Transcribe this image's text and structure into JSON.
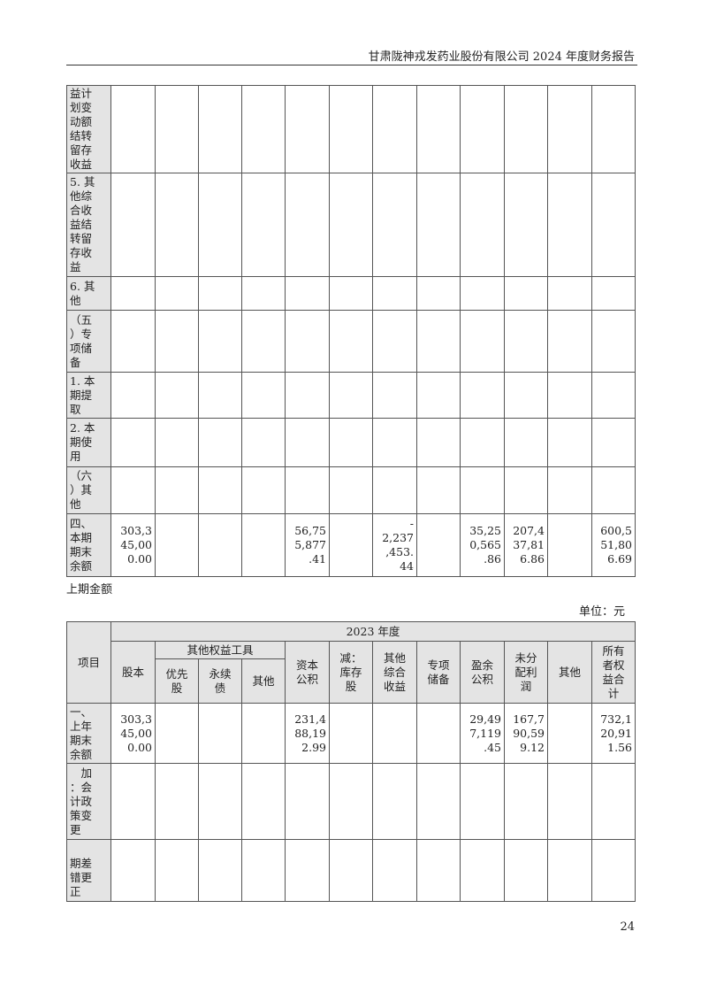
{
  "header": {
    "title": "甘肃陇神戎发药业股份有限公司 2024 年度财务报告"
  },
  "table1": {
    "rows": [
      {
        "label": "益计\n划变\n动额\n结转\n留存\n收益",
        "values": [
          "",
          "",
          "",
          "",
          "",
          "",
          "",
          "",
          "",
          "",
          "",
          ""
        ]
      },
      {
        "label": "5. 其\n他综\n合收\n益结\n转留\n存收\n益",
        "values": [
          "",
          "",
          "",
          "",
          "",
          "",
          "",
          "",
          "",
          "",
          "",
          ""
        ]
      },
      {
        "label": "6. 其\n他",
        "values": [
          "",
          "",
          "",
          "",
          "",
          "",
          "",
          "",
          "",
          "",
          "",
          ""
        ]
      },
      {
        "label": "（五\n）专\n项储\n备",
        "values": [
          "",
          "",
          "",
          "",
          "",
          "",
          "",
          "",
          "",
          "",
          "",
          ""
        ]
      },
      {
        "label": "1. 本\n期提\n取",
        "values": [
          "",
          "",
          "",
          "",
          "",
          "",
          "",
          "",
          "",
          "",
          "",
          ""
        ]
      },
      {
        "label": "2. 本\n期使\n用",
        "values": [
          "",
          "",
          "",
          "",
          "",
          "",
          "",
          "",
          "",
          "",
          "",
          ""
        ]
      },
      {
        "label": "（六\n）其\n他",
        "values": [
          "",
          "",
          "",
          "",
          "",
          "",
          "",
          "",
          "",
          "",
          "",
          ""
        ]
      },
      {
        "label": "四、\n本期\n期末\n余额",
        "values": [
          "303,3\n45,00\n0.00",
          "",
          "",
          "",
          "56,75\n5,877\n.41",
          "",
          "-\n2,237\n,453.\n44",
          "",
          "35,25\n0,565\n.86",
          "207,4\n37,81\n6.86",
          "",
          "600,5\n51,80\n6.69"
        ]
      }
    ]
  },
  "section_title": "上期金额",
  "unit": "单位：元",
  "table2": {
    "item_header": "项目",
    "year_header": "2023 年度",
    "other_equity_header": "其他权益工具",
    "columns": [
      "股本",
      "优先\n股",
      "永续\n债",
      "其他",
      "资本\n公积",
      "减：\n库存\n股",
      "其他\n综合\n收益",
      "专项\n储备",
      "盈余\n公积",
      "未分\n配利\n润",
      "其他",
      "所有\n者权\n益合\n计"
    ],
    "rows": [
      {
        "label": "一、\n上年\n期末\n余额",
        "values": [
          "303,3\n45,00\n0.00",
          "",
          "",
          "",
          "231,4\n88,19\n2.99",
          "",
          "",
          "",
          "29,49\n7,119\n.45",
          "167,7\n90,59\n9.12",
          "",
          "732,1\n20,91\n1.56"
        ]
      },
      {
        "label": "　加\n：会\n计政\n策变\n更",
        "values": [
          "",
          "",
          "",
          "",
          "",
          "",
          "",
          "",
          "",
          "",
          "",
          ""
        ]
      },
      {
        "label": "　　\n期差\n错更\n正",
        "values": [
          "",
          "",
          "",
          "",
          "",
          "",
          "",
          "",
          "",
          "",
          "",
          ""
        ]
      }
    ]
  },
  "page_number": "24"
}
